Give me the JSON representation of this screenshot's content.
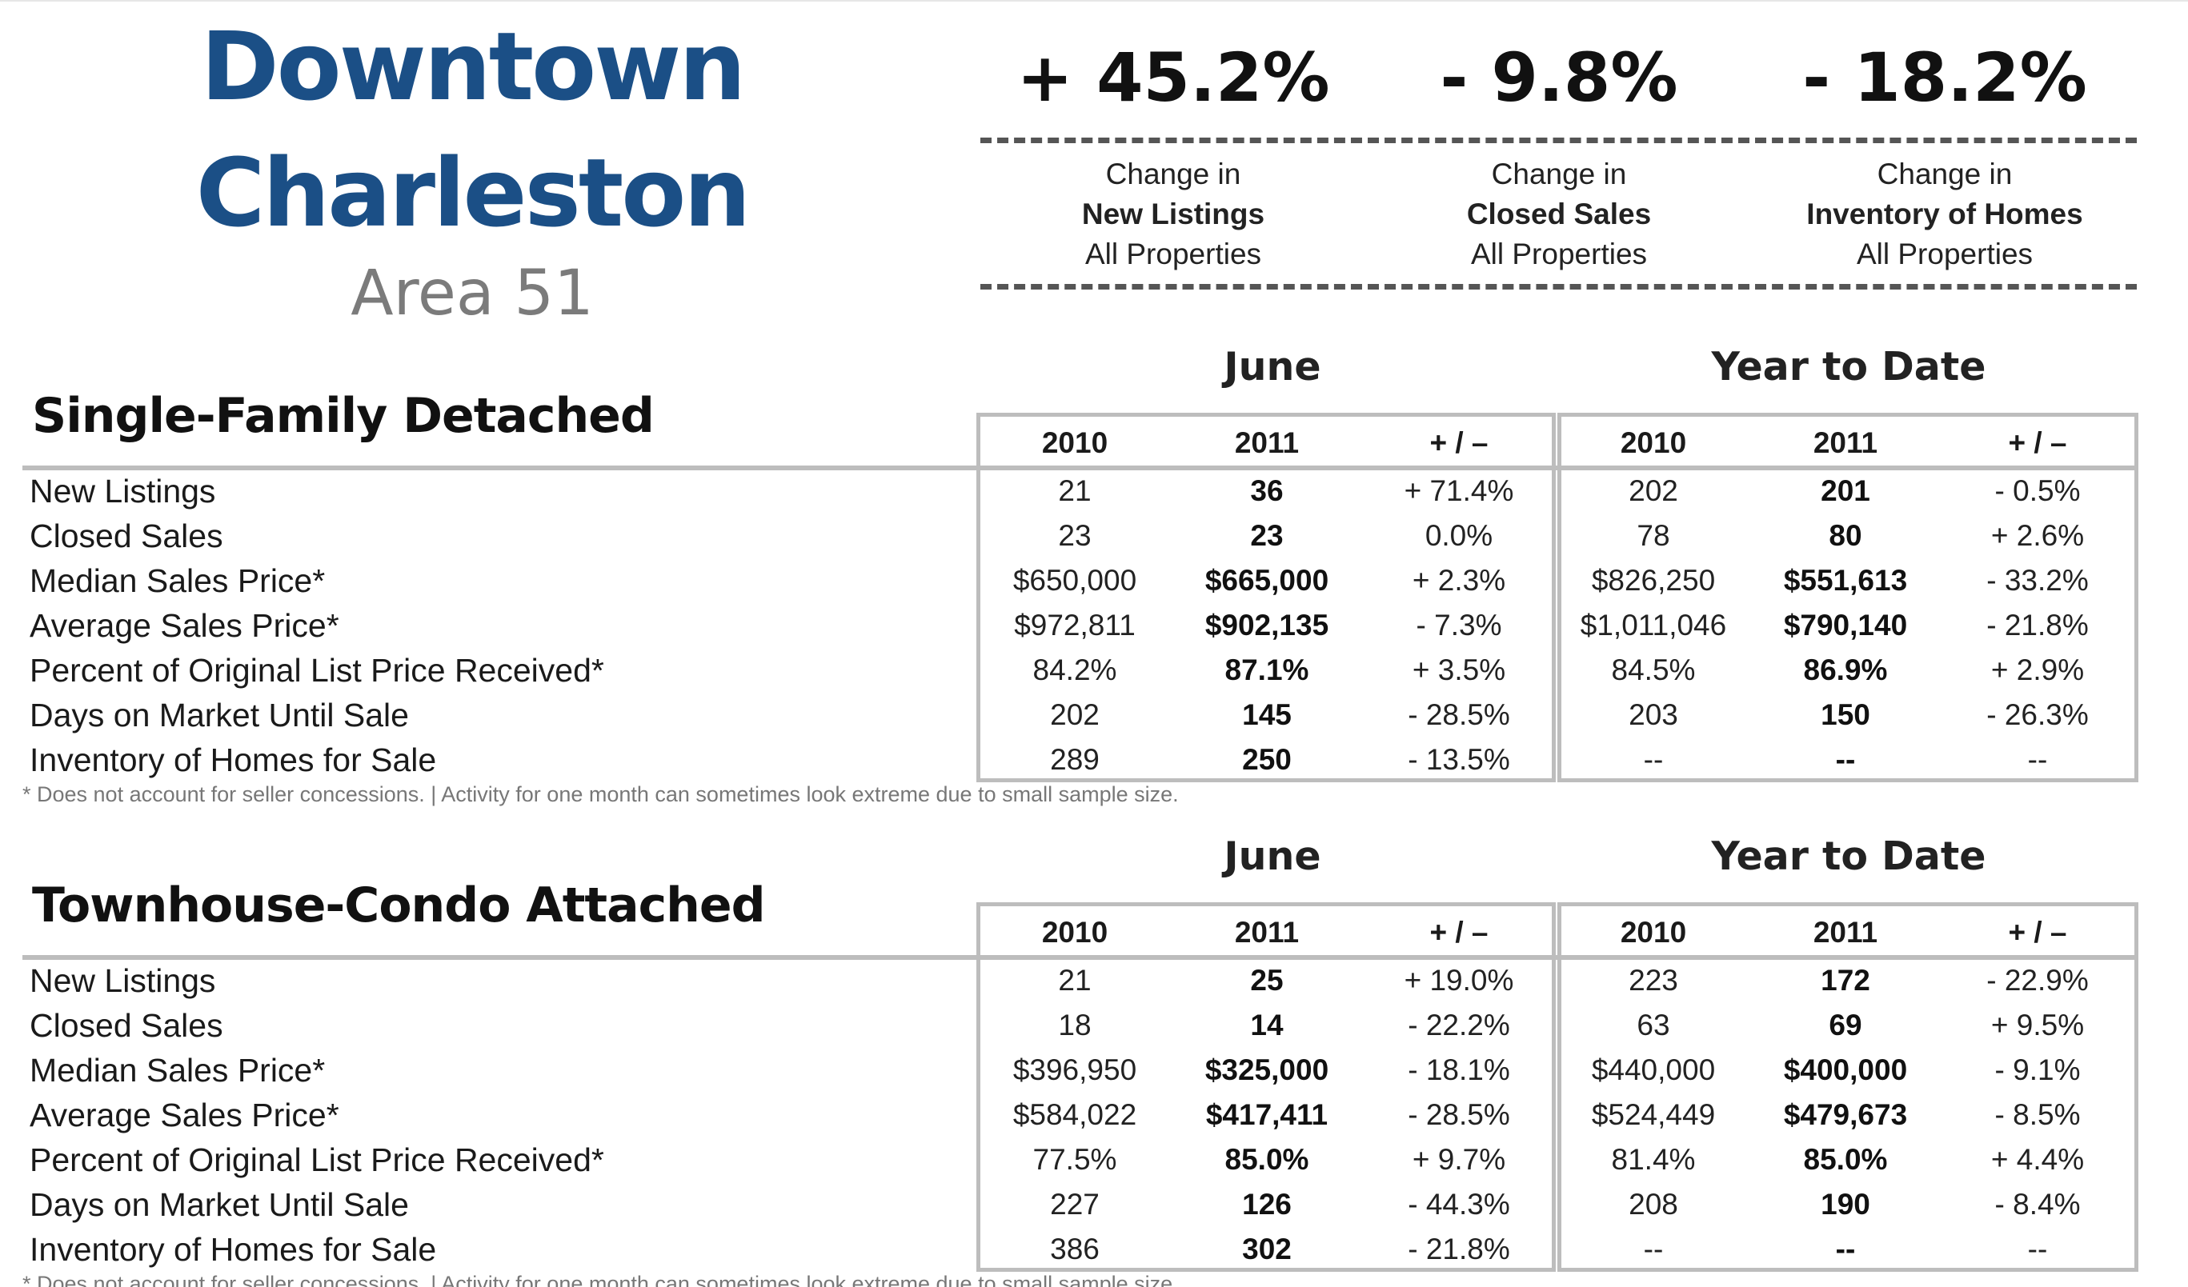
{
  "header": {
    "title_line1": "Downtown",
    "title_line2": "Charleston",
    "subtitle": "Area 51",
    "title_color": "#1b4f86"
  },
  "kpis": [
    {
      "value": "+ 45.2%",
      "line1": "Change in",
      "line2": "New Listings",
      "line3": "All Properties"
    },
    {
      "value": "- 9.8%",
      "line1": "Change in",
      "line2": "Closed Sales",
      "line3": "All Properties"
    },
    {
      "value": "- 18.2%",
      "line1": "Change in",
      "line2": "Inventory of Homes",
      "line3": "All Properties"
    }
  ],
  "sections": [
    {
      "title": "Single-Family Detached",
      "group1": "June",
      "group2": "Year to Date",
      "columns": [
        "2010",
        "2011",
        "+ / –",
        "2010",
        "2011",
        "+ / –"
      ],
      "rows": [
        {
          "label": "New Listings",
          "cells": [
            "21",
            "36",
            "+ 71.4%",
            "202",
            "201",
            "- 0.5%"
          ]
        },
        {
          "label": "Closed Sales",
          "cells": [
            "23",
            "23",
            "0.0%",
            "78",
            "80",
            "+ 2.6%"
          ]
        },
        {
          "label": "Median Sales Price*",
          "cells": [
            "$650,000",
            "$665,000",
            "+ 2.3%",
            "$826,250",
            "$551,613",
            "- 33.2%"
          ]
        },
        {
          "label": "Average Sales Price*",
          "cells": [
            "$972,811",
            "$902,135",
            "- 7.3%",
            "$1,011,046",
            "$790,140",
            "- 21.8%"
          ]
        },
        {
          "label": "Percent of Original List Price Received*",
          "cells": [
            "84.2%",
            "87.1%",
            "+ 3.5%",
            "84.5%",
            "86.9%",
            "+ 2.9%"
          ]
        },
        {
          "label": "Days on Market Until Sale",
          "cells": [
            "202",
            "145",
            "- 28.5%",
            "203",
            "150",
            "- 26.3%"
          ]
        },
        {
          "label": "Inventory of Homes for Sale",
          "cells": [
            "289",
            "250",
            "- 13.5%",
            "--",
            "--",
            "--"
          ]
        }
      ],
      "footnote": "* Does not account for seller concessions.  |  Activity for one month can sometimes look extreme due to small sample size."
    },
    {
      "title": "Townhouse-Condo Attached",
      "group1": "June",
      "group2": "Year to Date",
      "columns": [
        "2010",
        "2011",
        "+ / –",
        "2010",
        "2011",
        "+ / –"
      ],
      "rows": [
        {
          "label": "New Listings",
          "cells": [
            "21",
            "25",
            "+ 19.0%",
            "223",
            "172",
            "- 22.9%"
          ]
        },
        {
          "label": "Closed Sales",
          "cells": [
            "18",
            "14",
            "- 22.2%",
            "63",
            "69",
            "+ 9.5%"
          ]
        },
        {
          "label": "Median Sales Price*",
          "cells": [
            "$396,950",
            "$325,000",
            "- 18.1%",
            "$440,000",
            "$400,000",
            "- 9.1%"
          ]
        },
        {
          "label": "Average Sales Price*",
          "cells": [
            "$584,022",
            "$417,411",
            "- 28.5%",
            "$524,449",
            "$479,673",
            "- 8.5%"
          ]
        },
        {
          "label": "Percent of Original List Price Received*",
          "cells": [
            "77.5%",
            "85.0%",
            "+ 9.7%",
            "81.4%",
            "85.0%",
            "+ 4.4%"
          ]
        },
        {
          "label": "Days on Market Until Sale",
          "cells": [
            "227",
            "126",
            "- 44.3%",
            "208",
            "190",
            "- 8.4%"
          ]
        },
        {
          "label": "Inventory of Homes for Sale",
          "cells": [
            "386",
            "302",
            "- 21.8%",
            "--",
            "--",
            "--"
          ]
        }
      ],
      "footnote": "* Does not account for seller concessions.  |  Activity for one month can sometimes look extreme due to small sample size."
    }
  ]
}
